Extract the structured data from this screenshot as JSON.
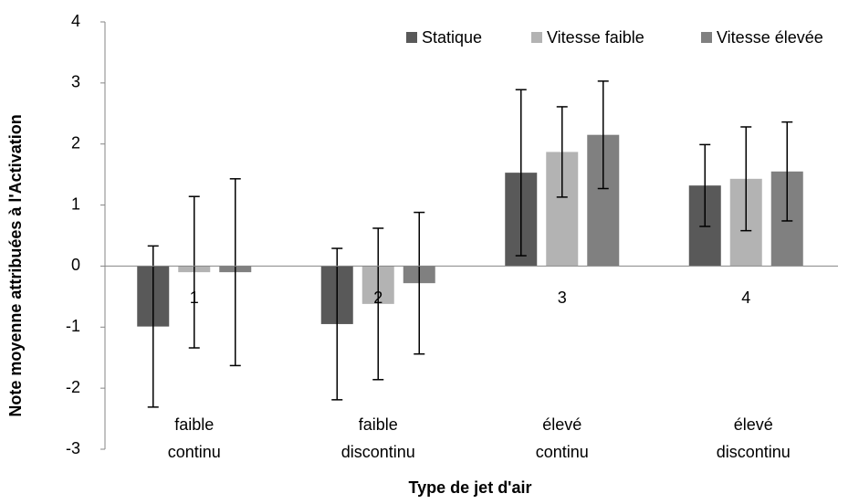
{
  "chart_data": {
    "type": "bar",
    "y_label": "Note moyenne attribuées à l'Activation",
    "x_label": "Type de jet d'air",
    "categories": [
      "1",
      "2",
      "3",
      "4"
    ],
    "annotations": [
      [
        "faible",
        "continu"
      ],
      [
        "faible",
        "discontinu"
      ],
      [
        "élevé",
        "continu"
      ],
      [
        "élevé",
        "discontinu"
      ]
    ],
    "series": [
      {
        "name": "Statique",
        "color": "#595959",
        "values": [
          -0.99,
          -0.95,
          1.53,
          1.32
        ],
        "errors": [
          1.32,
          1.24,
          1.36,
          0.67
        ]
      },
      {
        "name": "Vitesse faible",
        "color": "#b3b3b3",
        "values": [
          -0.1,
          -0.62,
          1.87,
          1.43
        ],
        "errors": [
          1.24,
          1.24,
          0.74,
          0.85
        ]
      },
      {
        "name": "Vitesse élevée",
        "color": "#808080",
        "values": [
          -0.1,
          -0.28,
          2.15,
          1.55
        ],
        "errors": [
          1.53,
          1.16,
          0.88,
          0.81
        ]
      }
    ],
    "ylim": [
      -3,
      4
    ],
    "yticks": [
      -3,
      -2,
      -1,
      0,
      1,
      2,
      3,
      4
    ],
    "grid": false,
    "legend": "top-right"
  }
}
